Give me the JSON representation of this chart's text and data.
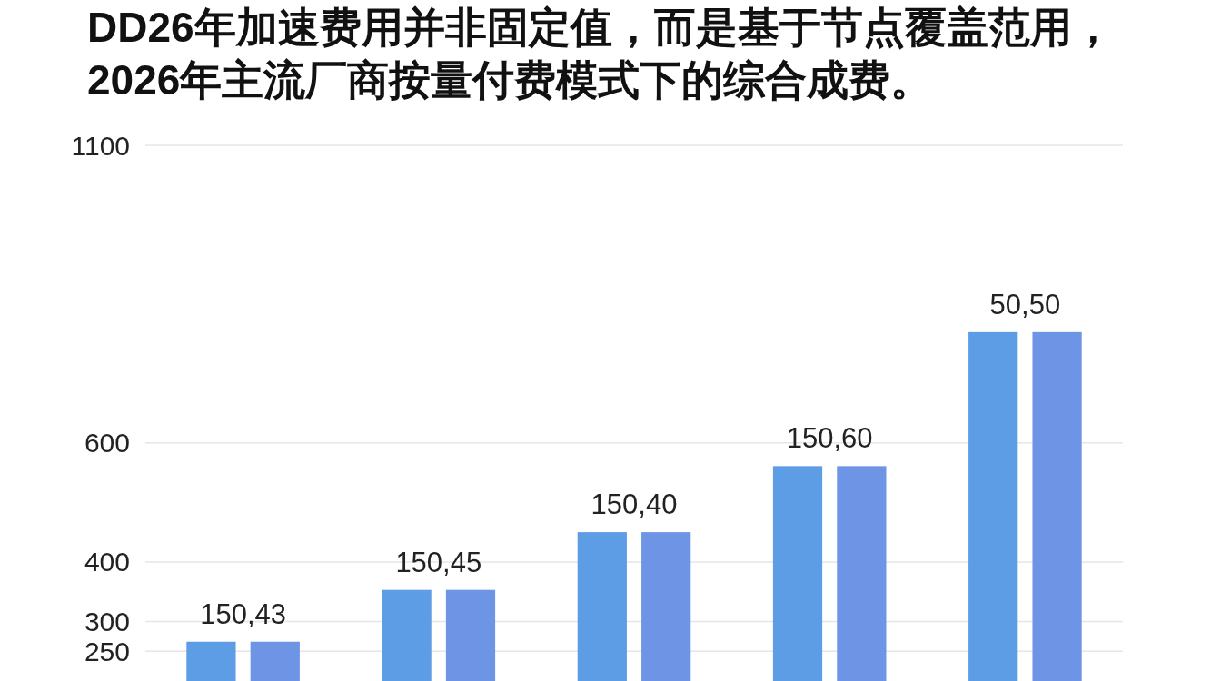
{
  "chart_data": {
    "type": "bar",
    "title": "DD26年加速费用并非固定值，而是基于节点覆盖范用，\n2026年主流厂商按量付费模式下的综合成费。",
    "categories": [
      null,
      null,
      null,
      null,
      null
    ],
    "series": [
      {
        "color": "#5d9de6",
        "values": [
          266,
          353,
          450,
          561,
          786
        ]
      },
      {
        "color": "#6e95e5",
        "values": [
          266,
          353,
          450,
          561,
          786
        ]
      }
    ],
    "annotations": [
      "150,43",
      "150,45",
      "150,40",
      "150,60",
      "50,50"
    ],
    "ylim": [
      200,
      1100
    ],
    "yticks": [
      250,
      300,
      400,
      600,
      1100
    ],
    "grid": "y"
  }
}
